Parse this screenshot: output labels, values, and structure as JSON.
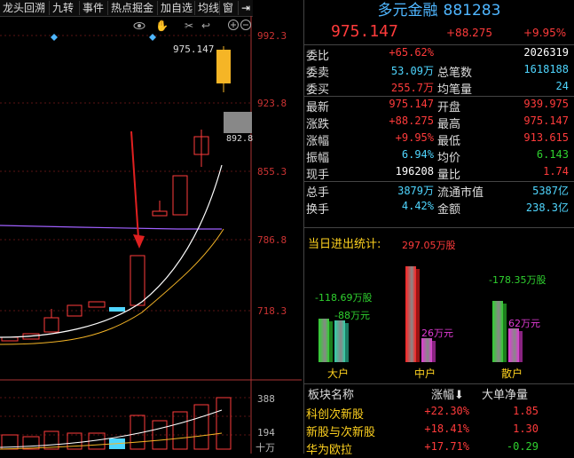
{
  "toolbar": {
    "items": [
      "龙头回溯",
      "九转",
      "事件",
      "热点掘金",
      "加自选",
      "均线",
      "窗"
    ]
  },
  "chart": {
    "price_axis": [
      "992.3",
      "923.8",
      "855.3",
      "786.8",
      "718.3"
    ],
    "last_price_tag": "975.147",
    "low_price_tag": "892.8",
    "volume_axis": [
      "388",
      "194",
      "十万"
    ]
  },
  "header": {
    "name": "多元金融",
    "code": "881283",
    "price": "975.147",
    "change": "+88.275",
    "change_pct": "+9.95%"
  },
  "quote": {
    "rows": [
      {
        "label": "委比",
        "value": "+65.62%",
        "value_color": "red",
        "label2": "",
        "value2": "2026319",
        "value2_color": "white"
      },
      {
        "label": "委卖",
        "value": "53.09万",
        "value_color": "cyan",
        "label2": "总笔数",
        "value2": "1618188",
        "value2_color": "cyan"
      },
      {
        "label": "委买",
        "value": "255.7万",
        "value_color": "red",
        "label2": "均笔量",
        "value2": "24",
        "value2_color": "cyan"
      },
      {
        "label": "最新",
        "value": "975.147",
        "value_color": "red",
        "label2": "开盘",
        "value2": "939.975",
        "value2_color": "red"
      },
      {
        "label": "涨跌",
        "value": "+88.275",
        "value_color": "red",
        "label2": "最高",
        "value2": "975.147",
        "value2_color": "red"
      },
      {
        "label": "涨幅",
        "value": "+9.95%",
        "value_color": "red",
        "label2": "最低",
        "value2": "913.615",
        "value2_color": "red"
      },
      {
        "label": "振幅",
        "value": "6.94%",
        "value_color": "cyan",
        "label2": "均价",
        "value2": "6.143",
        "value2_color": "green"
      },
      {
        "label": "现手",
        "value": "196208",
        "value_color": "white",
        "label2": "量比",
        "value2": "1.74",
        "value2_color": "red"
      },
      {
        "label": "总手",
        "value": "3879万",
        "value_color": "cyan",
        "label2": "流通市值",
        "value2": "5387亿",
        "value2_color": "cyan"
      },
      {
        "label": "换手",
        "value": "4.42%",
        "value_color": "cyan",
        "label2": "金额",
        "value2": "238.3亿",
        "value2_color": "cyan"
      }
    ]
  },
  "flow": {
    "title": "当日进出统计:",
    "groups": [
      {
        "name": "大户",
        "out_label": "-118.69万股",
        "in_label": "-88万元",
        "out_value": -118.69,
        "in_value": -88,
        "out_color": "#2fd12f",
        "in_color": "#2fd1a8"
      },
      {
        "name": "中户",
        "out_label": "297.05万股",
        "in_label": "26万元",
        "out_value": 297.05,
        "in_value": 26,
        "out_color": "#ff2020",
        "in_color": "#e23bd6"
      },
      {
        "name": "散户",
        "out_label": "-178.35万股",
        "in_label": "62万元",
        "out_value": -178.35,
        "in_value": 62,
        "out_color": "#2fd12f",
        "in_color": "#e23bd6"
      }
    ]
  },
  "sectors": {
    "headers": [
      "板块名称",
      "涨幅",
      "大单净量"
    ],
    "sort_icon": "arrow-down-icon",
    "rows": [
      {
        "name": "科创次新股",
        "pct": "+22.30%",
        "net": "1.85",
        "net_color": "red"
      },
      {
        "name": "新股与次新股",
        "pct": "+18.41%",
        "net": "1.30",
        "net_color": "red"
      },
      {
        "name": "华为欧拉",
        "pct": "+17.71%",
        "net": "-0.29",
        "net_color": "green"
      }
    ]
  },
  "colors": {
    "up": "#ff3b3b",
    "down": "#2fd12f",
    "accent": "#4fb6ff",
    "label_yellow": "#ffd21f"
  }
}
